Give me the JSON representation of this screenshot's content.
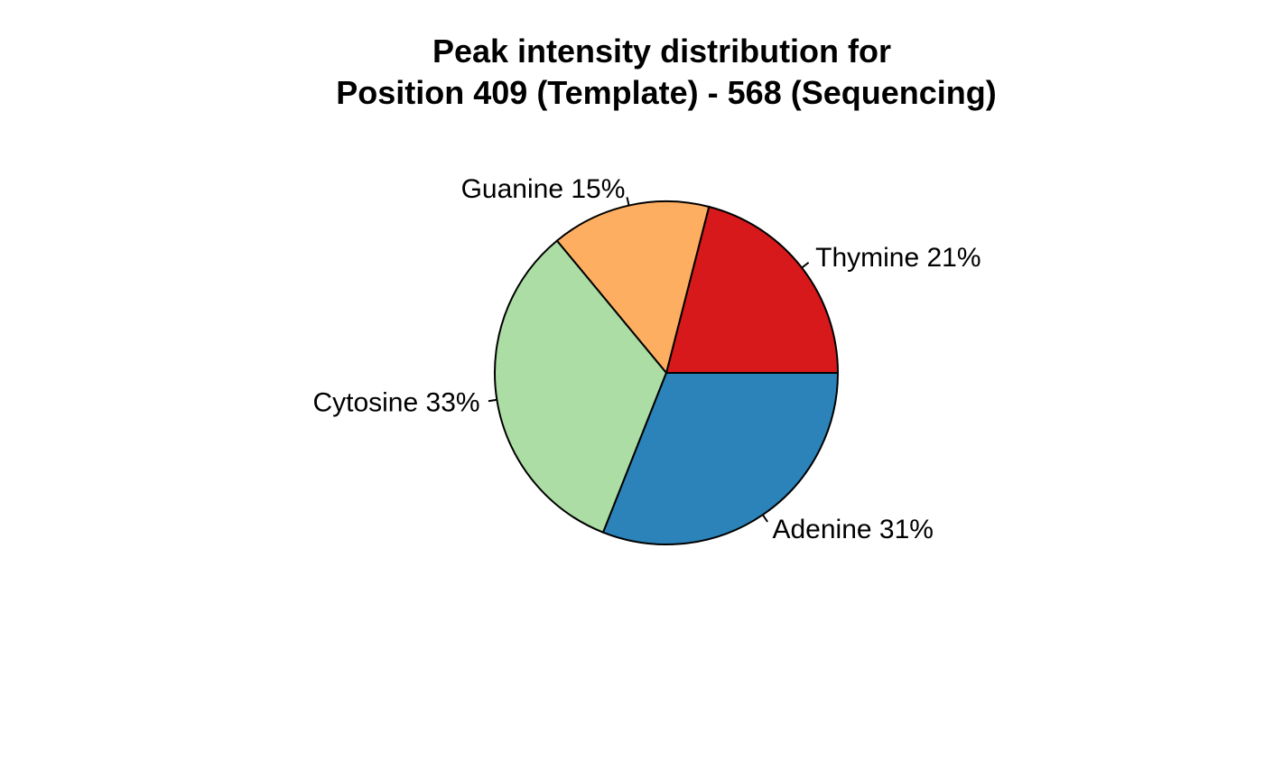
{
  "chart_data": {
    "type": "pie",
    "title": "Peak intensity distribution for",
    "subtitle": "Position 409 (Template) - 568 (Sequencing)",
    "start_angle_deg": 0,
    "direction": "counterclockwise",
    "slices": [
      {
        "name": "Thymine",
        "value": 21,
        "label": "Thymine 21%",
        "color": "#D7191C"
      },
      {
        "name": "Guanine",
        "value": 15,
        "label": "Guanine 15%",
        "color": "#FDAE61"
      },
      {
        "name": "Cytosine",
        "value": 33,
        "label": "Cytosine 33%",
        "color": "#ABDDA4"
      },
      {
        "name": "Adenine",
        "value": 31,
        "label": "Adenine 31%",
        "color": "#2B83BA"
      }
    ]
  }
}
